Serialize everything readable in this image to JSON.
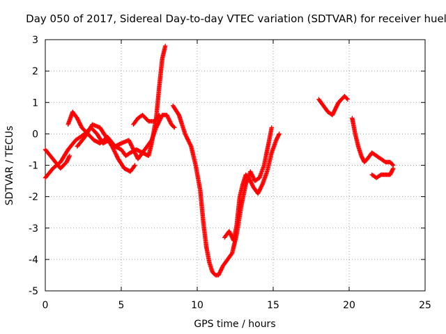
{
  "chart_data": {
    "type": "scatter",
    "title": "Day 050 of 2017, Sidereal Day-to-day VTEC variation (SDTVAR) for receiver huel",
    "xlabel": "GPS time / hours",
    "ylabel": "SDTVAR / TECUs",
    "xlim": [
      0,
      25
    ],
    "ylim": [
      -5,
      3
    ],
    "x_ticks": [
      "0",
      "5",
      "10",
      "15",
      "20",
      "25"
    ],
    "y_ticks": [
      "-5",
      "-4",
      "-3",
      "-2",
      "-1",
      "0",
      "1",
      "2",
      "3"
    ],
    "grid": true,
    "marker": "+",
    "series_color": "#ff0000",
    "segments": [
      {
        "x": [
          0,
          0.5,
          1.0,
          1.4,
          1.6
        ],
        "y": [
          -0.5,
          -0.8,
          -1.1,
          -0.9,
          -0.7
        ]
      },
      {
        "x": [
          0,
          0.5,
          1.0,
          1.5,
          2.0,
          2.6,
          3.0,
          3.4,
          3.8,
          4.2,
          4.6,
          5.0,
          5.3,
          5.6,
          6.0,
          6.4,
          6.8,
          7.0,
          7.3,
          7.5,
          7.7,
          7.9
        ],
        "y": [
          -1.4,
          -1.1,
          -0.9,
          -0.5,
          -0.2,
          0.0,
          0.2,
          0.0,
          -0.3,
          -0.2,
          -0.4,
          -0.5,
          -0.7,
          -0.6,
          -0.5,
          -0.6,
          -0.7,
          -0.3,
          0.5,
          1.5,
          2.4,
          2.8
        ]
      },
      {
        "x": [
          1.5,
          1.8,
          2.1,
          2.4,
          2.8,
          3.2,
          3.6,
          4.1,
          4.6,
          5.0,
          5.5,
          5.8,
          6.1,
          6.4,
          6.7,
          7.0,
          7.3,
          7.7,
          8.0,
          8.3,
          8.5
        ],
        "y": [
          0.3,
          0.7,
          0.5,
          0.2,
          0.0,
          -0.2,
          -0.3,
          -0.1,
          -0.4,
          -0.3,
          -0.2,
          -0.5,
          -0.8,
          -0.6,
          -0.4,
          -0.2,
          0.2,
          0.6,
          0.6,
          0.3,
          0.2
        ]
      },
      {
        "x": [
          2.1,
          2.6,
          3.1,
          3.6,
          4.0,
          4.4,
          4.8,
          5.2,
          5.6,
          5.9
        ],
        "y": [
          -0.4,
          -0.1,
          0.3,
          0.2,
          -0.1,
          -0.4,
          -0.8,
          -1.1,
          -1.2,
          -1.0
        ]
      },
      {
        "x": [
          5.8,
          6.1,
          6.4,
          6.8,
          7.2,
          7.5
        ],
        "y": [
          0.3,
          0.5,
          0.6,
          0.4,
          0.4,
          0.6
        ]
      },
      {
        "x": [
          8.4,
          8.8,
          9.2,
          9.6,
          9.9,
          10.2,
          10.4,
          10.6,
          10.8,
          11.0,
          11.2,
          11.4,
          11.7,
          12.0,
          12.3,
          12.6,
          12.9,
          13.2,
          13.5,
          13.8,
          14.1,
          14.4,
          14.7,
          14.9
        ],
        "y": [
          0.9,
          0.6,
          0.0,
          -0.4,
          -1.0,
          -1.8,
          -2.8,
          -3.6,
          -4.1,
          -4.4,
          -4.5,
          -4.5,
          -4.2,
          -4.0,
          -3.8,
          -3.2,
          -2.3,
          -1.6,
          -1.2,
          -1.5,
          -1.4,
          -1.0,
          -0.3,
          0.2
        ]
      },
      {
        "x": [
          11.8,
          12.1,
          12.4,
          12.6,
          12.8,
          13.0,
          13.2,
          13.4,
          13.7,
          14.0,
          14.3,
          14.6,
          14.9,
          15.2,
          15.4
        ],
        "y": [
          -3.3,
          -3.1,
          -3.4,
          -2.9,
          -2.0,
          -1.6,
          -1.3,
          -1.4,
          -1.7,
          -1.9,
          -1.6,
          -1.2,
          -0.6,
          -0.2,
          0.0
        ]
      },
      {
        "x": [
          18.0,
          18.3,
          18.6,
          18.9,
          19.1,
          19.3,
          19.5,
          19.7,
          19.9
        ],
        "y": [
          1.1,
          0.9,
          0.7,
          0.6,
          0.8,
          1.0,
          1.1,
          1.2,
          1.1
        ]
      },
      {
        "x": [
          20.2,
          20.4,
          20.6,
          20.8,
          21.0,
          21.2,
          21.5,
          21.8,
          22.1,
          22.4,
          22.7,
          22.9
        ],
        "y": [
          0.5,
          0.0,
          -0.4,
          -0.7,
          -0.9,
          -0.8,
          -0.6,
          -0.7,
          -0.8,
          -0.9,
          -0.9,
          -1.0
        ]
      },
      {
        "x": [
          21.5,
          21.8,
          22.1,
          22.4,
          22.7,
          22.9
        ],
        "y": [
          -1.3,
          -1.4,
          -1.3,
          -1.3,
          -1.3,
          -1.1
        ]
      }
    ]
  }
}
